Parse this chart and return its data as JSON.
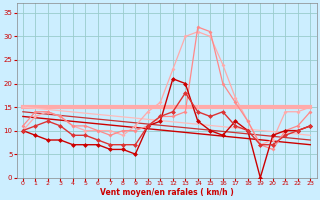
{
  "background_color": "#cceeff",
  "grid_color": "#99cccc",
  "xlabel": "Vent moyen/en rafales ( km/h )",
  "xlabel_color": "#cc0000",
  "ylabel_color": "#cc0000",
  "xlim": [
    -0.5,
    23.5
  ],
  "ylim": [
    0,
    37
  ],
  "yticks": [
    0,
    5,
    10,
    15,
    20,
    25,
    30,
    35
  ],
  "xticks": [
    0,
    1,
    2,
    3,
    4,
    5,
    6,
    7,
    8,
    9,
    10,
    11,
    12,
    13,
    14,
    15,
    16,
    17,
    18,
    19,
    20,
    21,
    22,
    23
  ],
  "series": [
    {
      "comment": "dark red line with diamond markers - main wind",
      "x": [
        0,
        1,
        2,
        3,
        4,
        5,
        6,
        7,
        8,
        9,
        10,
        11,
        12,
        13,
        14,
        15,
        16,
        17,
        18,
        19,
        20,
        21,
        22,
        23
      ],
      "y": [
        10,
        9,
        8,
        8,
        7,
        7,
        7,
        6,
        6,
        5,
        11,
        12,
        21,
        20,
        12,
        10,
        9,
        12,
        10,
        0,
        9,
        10,
        10,
        11
      ],
      "color": "#cc0000",
      "marker": "D",
      "markersize": 2.5,
      "linewidth": 1.0,
      "linestyle": "-",
      "zorder": 5
    },
    {
      "comment": "light pink high peak line",
      "x": [
        0,
        1,
        2,
        3,
        4,
        5,
        6,
        7,
        8,
        9,
        10,
        11,
        12,
        13,
        14,
        15,
        16,
        17,
        18,
        19,
        20,
        21,
        22,
        23
      ],
      "y": [
        10,
        13,
        14,
        13,
        11,
        10,
        10,
        10,
        9,
        11,
        14,
        16,
        23,
        30,
        31,
        30,
        24,
        17,
        12,
        7,
        8,
        14,
        14,
        15
      ],
      "color": "#ffaaaa",
      "marker": "D",
      "markersize": 2.0,
      "linewidth": 0.9,
      "linestyle": "-",
      "zorder": 3
    },
    {
      "comment": "medium pink line",
      "x": [
        0,
        1,
        2,
        3,
        4,
        5,
        6,
        7,
        8,
        9,
        10,
        11,
        12,
        13,
        14,
        15,
        16,
        17,
        18,
        19,
        20,
        21,
        22,
        23
      ],
      "y": [
        11,
        14,
        14,
        13,
        11,
        11,
        10,
        9,
        10,
        10,
        11,
        13,
        13,
        14,
        32,
        31,
        20,
        16,
        12,
        7,
        6,
        10,
        11,
        14
      ],
      "color": "#ff8888",
      "marker": "D",
      "markersize": 2.0,
      "linewidth": 0.9,
      "linestyle": "-",
      "zorder": 4
    },
    {
      "comment": "slightly darker red line",
      "x": [
        0,
        1,
        2,
        3,
        4,
        5,
        6,
        7,
        8,
        9,
        10,
        11,
        12,
        13,
        14,
        15,
        16,
        17,
        18,
        19,
        20,
        21,
        22,
        23
      ],
      "y": [
        10,
        11,
        12,
        11,
        9,
        9,
        8,
        7,
        7,
        7,
        11,
        13,
        14,
        18,
        14,
        13,
        14,
        11,
        10,
        7,
        7,
        9,
        10,
        11
      ],
      "color": "#dd3333",
      "marker": "D",
      "markersize": 2.5,
      "linewidth": 1.0,
      "linestyle": "-",
      "zorder": 5
    },
    {
      "comment": "horizontal reference line at 15 - solid thick pink",
      "x": [
        0,
        23
      ],
      "y": [
        15,
        15
      ],
      "color": "#ffaaaa",
      "marker": null,
      "markersize": 0,
      "linewidth": 3.0,
      "linestyle": "-",
      "zorder": 2
    },
    {
      "comment": "diagonal line from top-left to bottom-right dark red",
      "x": [
        0,
        23
      ],
      "y": [
        13,
        7
      ],
      "color": "#cc0000",
      "marker": null,
      "markersize": 0,
      "linewidth": 1.0,
      "linestyle": "-",
      "zorder": 2
    },
    {
      "comment": "diagonal line slightly above dark",
      "x": [
        0,
        23
      ],
      "y": [
        14,
        8
      ],
      "color": "#cc3333",
      "marker": null,
      "markersize": 0,
      "linewidth": 0.9,
      "linestyle": "-",
      "zorder": 2
    },
    {
      "comment": "diagonal line light pink",
      "x": [
        0,
        23
      ],
      "y": [
        15,
        9
      ],
      "color": "#ffbbbb",
      "marker": null,
      "markersize": 0,
      "linewidth": 0.9,
      "linestyle": "-",
      "zorder": 2
    }
  ]
}
